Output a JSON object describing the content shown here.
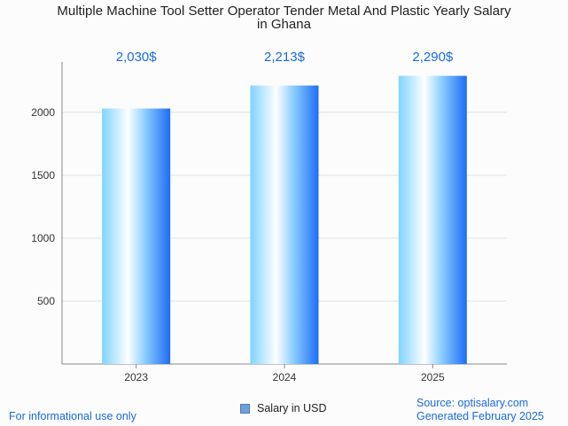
{
  "chart_data": {
    "type": "bar",
    "title_line1": "Multiple Machine Tool Setter Operator Tender Metal And Plastic Yearly Salary",
    "title_line2": "in Ghana",
    "categories": [
      "2023",
      "2024",
      "2025"
    ],
    "values": [
      2030,
      2213,
      2290
    ],
    "value_labels": [
      "2,030$",
      "2,213$",
      "2,290$"
    ],
    "yticks": [
      500,
      1000,
      1500,
      2000
    ],
    "ylim": [
      0,
      2400
    ],
    "legend": "Salary in USD",
    "grid": true,
    "colors": {
      "bar_light": "#ffffff",
      "bar_mid": "#7fd3ff",
      "bar_dark": "#1e6cf5",
      "label": "#1a6ad9"
    }
  },
  "footer": {
    "left": "For informational use only",
    "source": "Source: optisalary.com",
    "generated": "Generated February 2025"
  }
}
